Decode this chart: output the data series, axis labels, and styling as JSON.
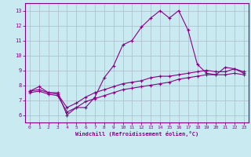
{
  "xlabel": "Windchill (Refroidissement éolien,°C)",
  "bg_color": "#c8eaf0",
  "line_color": "#880088",
  "grid_color": "#aabbcc",
  "xlim": [
    -0.5,
    23.5
  ],
  "ylim": [
    5.5,
    13.5
  ],
  "xticks": [
    0,
    1,
    2,
    3,
    4,
    5,
    6,
    7,
    8,
    9,
    10,
    11,
    12,
    13,
    14,
    15,
    16,
    17,
    18,
    19,
    20,
    21,
    22,
    23
  ],
  "yticks": [
    6,
    7,
    8,
    9,
    10,
    11,
    12,
    13
  ],
  "lines": [
    {
      "x": [
        0,
        1,
        2,
        3,
        4,
        5,
        6,
        7,
        8,
        9,
        10,
        11,
        12,
        13,
        14,
        15,
        16,
        17,
        18,
        19,
        20,
        21,
        22,
        23
      ],
      "y": [
        7.6,
        7.9,
        7.5,
        7.5,
        6.0,
        6.5,
        6.5,
        7.2,
        8.5,
        9.3,
        10.7,
        11.0,
        11.9,
        12.5,
        13.0,
        12.5,
        13.0,
        11.7,
        9.4,
        8.8,
        8.7,
        9.2,
        9.1,
        8.8
      ]
    },
    {
      "x": [
        0,
        1,
        2,
        3,
        4,
        5,
        6,
        7,
        8,
        9,
        10,
        11,
        12,
        13,
        14,
        15,
        16,
        17,
        18,
        19,
        20,
        21,
        22,
        23
      ],
      "y": [
        7.6,
        7.7,
        7.5,
        7.4,
        6.5,
        6.8,
        7.2,
        7.5,
        7.7,
        7.9,
        8.1,
        8.2,
        8.3,
        8.5,
        8.6,
        8.6,
        8.7,
        8.8,
        8.9,
        9.0,
        8.9,
        8.9,
        9.1,
        8.9
      ]
    },
    {
      "x": [
        0,
        1,
        2,
        3,
        4,
        5,
        6,
        7,
        8,
        9,
        10,
        11,
        12,
        13,
        14,
        15,
        16,
        17,
        18,
        19,
        20,
        21,
        22,
        23
      ],
      "y": [
        7.5,
        7.6,
        7.4,
        7.3,
        6.2,
        6.5,
        6.9,
        7.1,
        7.3,
        7.5,
        7.7,
        7.8,
        7.9,
        8.0,
        8.1,
        8.2,
        8.4,
        8.5,
        8.6,
        8.7,
        8.7,
        8.7,
        8.8,
        8.7
      ]
    }
  ]
}
